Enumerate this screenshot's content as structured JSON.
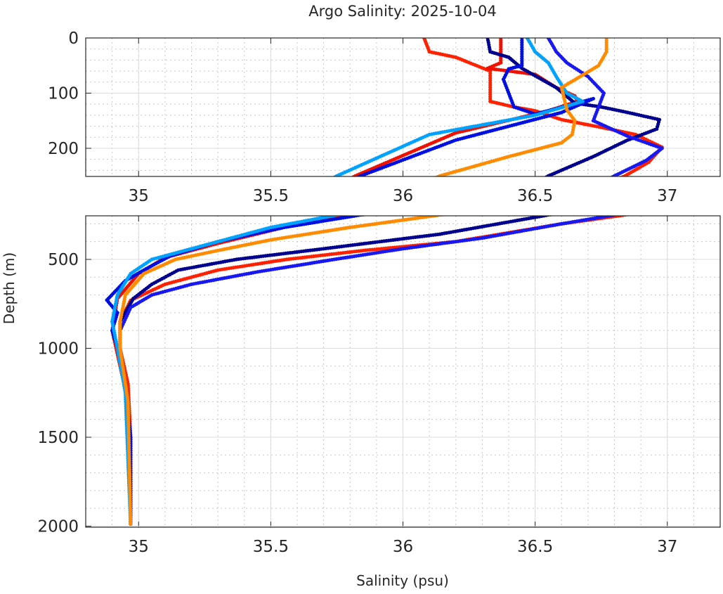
{
  "chart_data": [
    {
      "type": "scatter",
      "panel": "upper",
      "title": "Argo Salinity: 2025-10-04",
      "xlabel": "",
      "ylabel": "",
      "xlim": [
        34.8,
        37.2
      ],
      "ylim": [
        0,
        251
      ],
      "y_reversed": true,
      "xticks": [
        35,
        35.5,
        36,
        36.5,
        37
      ],
      "xtick_labels": [
        "35",
        "35.5",
        "36",
        "36.5",
        "37"
      ],
      "yticks": [
        0,
        100,
        200
      ],
      "ytick_labels": [
        "0",
        "100",
        "200"
      ],
      "grid": true,
      "minor_grid": true
    },
    {
      "type": "scatter",
      "panel": "lower",
      "xlabel": "Salinity (psu)",
      "ylabel": "Depth (m)",
      "xlim": [
        34.8,
        37.2
      ],
      "ylim": [
        255,
        2006
      ],
      "y_reversed": true,
      "xticks": [
        35,
        35.5,
        36,
        36.5,
        37
      ],
      "xtick_labels": [
        "35",
        "35.5",
        "36",
        "36.5",
        "37"
      ],
      "yticks": [
        500,
        1000,
        1500,
        2000
      ],
      "ytick_labels": [
        "500",
        "1000",
        "1500",
        "2000"
      ],
      "grid": true,
      "minor_grid": true
    }
  ],
  "series": [
    {
      "name": "profile-red-1",
      "color": "#ff2200",
      "points": [
        [
          36.08,
          0
        ],
        [
          36.1,
          25
        ],
        [
          36.2,
          35
        ],
        [
          36.33,
          60
        ],
        [
          36.33,
          115
        ],
        [
          36.42,
          125
        ],
        [
          36.5,
          132
        ],
        [
          36.6,
          148
        ],
        [
          36.75,
          162
        ],
        [
          36.88,
          175
        ],
        [
          36.98,
          198
        ],
        [
          36.93,
          225
        ],
        [
          36.84,
          250
        ],
        [
          36.6,
          300
        ],
        [
          36.2,
          400
        ],
        [
          35.85,
          450
        ],
        [
          35.56,
          500
        ],
        [
          35.3,
          560
        ],
        [
          35.1,
          640
        ],
        [
          34.97,
          730
        ],
        [
          34.93,
          850
        ],
        [
          34.93,
          1000
        ],
        [
          34.96,
          1200
        ],
        [
          34.97,
          1500
        ],
        [
          34.97,
          2000
        ]
      ]
    },
    {
      "name": "profile-red-2",
      "color": "#ee1100",
      "points": [
        [
          36.37,
          0
        ],
        [
          36.37,
          45
        ],
        [
          36.32,
          55
        ],
        [
          36.5,
          66
        ],
        [
          36.58,
          90
        ],
        [
          36.65,
          105
        ],
        [
          36.66,
          115
        ],
        [
          36.55,
          132
        ],
        [
          36.2,
          172
        ],
        [
          35.82,
          250
        ],
        [
          35.55,
          320
        ],
        [
          35.3,
          410
        ],
        [
          35.1,
          490
        ],
        [
          35.0,
          580
        ],
        [
          34.92,
          720
        ],
        [
          34.9,
          900
        ],
        [
          34.93,
          1100
        ],
        [
          34.96,
          1300
        ],
        [
          34.97,
          2000
        ]
      ]
    },
    {
      "name": "profile-navy",
      "color": "#00008f",
      "points": [
        [
          36.32,
          0
        ],
        [
          36.33,
          25
        ],
        [
          36.4,
          35
        ],
        [
          36.45,
          55
        ],
        [
          36.58,
          90
        ],
        [
          36.65,
          118
        ],
        [
          36.75,
          125
        ],
        [
          36.85,
          135
        ],
        [
          36.97,
          148
        ],
        [
          36.96,
          165
        ],
        [
          36.85,
          185
        ],
        [
          36.72,
          215
        ],
        [
          36.55,
          250
        ],
        [
          36.14,
          358
        ],
        [
          35.7,
          440
        ],
        [
          35.37,
          500
        ],
        [
          35.15,
          560
        ],
        [
          35.05,
          640
        ],
        [
          34.98,
          720
        ],
        [
          34.93,
          850
        ],
        [
          34.93,
          1000
        ],
        [
          34.96,
          1300
        ],
        [
          34.97,
          2000
        ]
      ]
    },
    {
      "name": "profile-blue-1",
      "color": "#0010e0",
      "points": [
        [
          36.45,
          0
        ],
        [
          36.45,
          50
        ],
        [
          36.4,
          56
        ],
        [
          36.38,
          75
        ],
        [
          36.42,
          125
        ],
        [
          36.5,
          138
        ],
        [
          36.66,
          118
        ],
        [
          36.72,
          110
        ],
        [
          36.6,
          135
        ],
        [
          36.2,
          185
        ],
        [
          35.84,
          250
        ],
        [
          35.55,
          320
        ],
        [
          35.3,
          400
        ],
        [
          35.12,
          480
        ],
        [
          35.02,
          560
        ],
        [
          34.95,
          620
        ],
        [
          34.88,
          729
        ],
        [
          34.92,
          800
        ],
        [
          34.9,
          900
        ],
        [
          34.92,
          1000
        ],
        [
          34.95,
          1200
        ],
        [
          34.97,
          1500
        ],
        [
          34.97,
          2000
        ]
      ]
    },
    {
      "name": "profile-blue-2",
      "color": "#1818f0",
      "points": [
        [
          36.55,
          0
        ],
        [
          36.58,
          25
        ],
        [
          36.62,
          45
        ],
        [
          36.7,
          70
        ],
        [
          36.76,
          100
        ],
        [
          36.72,
          150
        ],
        [
          36.85,
          178
        ],
        [
          36.98,
          200
        ],
        [
          36.92,
          222
        ],
        [
          36.8,
          250
        ],
        [
          36.6,
          300
        ],
        [
          36.3,
          380
        ],
        [
          36.0,
          440
        ],
        [
          35.74,
          500
        ],
        [
          35.45,
          570
        ],
        [
          35.2,
          640
        ],
        [
          35.05,
          700
        ],
        [
          34.97,
          770
        ],
        [
          34.93,
          900
        ],
        [
          34.93,
          1000
        ],
        [
          34.96,
          1300
        ],
        [
          34.97,
          2000
        ]
      ]
    },
    {
      "name": "profile-lightblue",
      "color": "#00a2ff",
      "points": [
        [
          36.47,
          0
        ],
        [
          36.5,
          25
        ],
        [
          36.55,
          45
        ],
        [
          36.58,
          70
        ],
        [
          36.62,
          100
        ],
        [
          36.68,
          115
        ],
        [
          36.5,
          140
        ],
        [
          36.1,
          175
        ],
        [
          35.75,
          250
        ],
        [
          35.5,
          320
        ],
        [
          35.3,
          400
        ],
        [
          35.15,
          460
        ],
        [
          35.05,
          500
        ],
        [
          34.97,
          580
        ],
        [
          34.92,
          700
        ],
        [
          34.9,
          850
        ],
        [
          34.92,
          1000
        ],
        [
          34.95,
          1250
        ],
        [
          34.97,
          2000
        ]
      ]
    },
    {
      "name": "profile-orange",
      "color": "#ff8c00",
      "points": [
        [
          36.77,
          0
        ],
        [
          36.77,
          25
        ],
        [
          36.74,
          50
        ],
        [
          36.6,
          90
        ],
        [
          36.62,
          130
        ],
        [
          36.65,
          150
        ],
        [
          36.64,
          175
        ],
        [
          36.6,
          190
        ],
        [
          36.4,
          215
        ],
        [
          36.14,
          250
        ],
        [
          35.8,
          320
        ],
        [
          35.5,
          390
        ],
        [
          35.3,
          450
        ],
        [
          35.14,
          500
        ],
        [
          35.02,
          580
        ],
        [
          34.95,
          700
        ],
        [
          34.93,
          850
        ],
        [
          34.93,
          1000
        ],
        [
          34.96,
          1300
        ],
        [
          34.97,
          2000
        ]
      ]
    }
  ]
}
